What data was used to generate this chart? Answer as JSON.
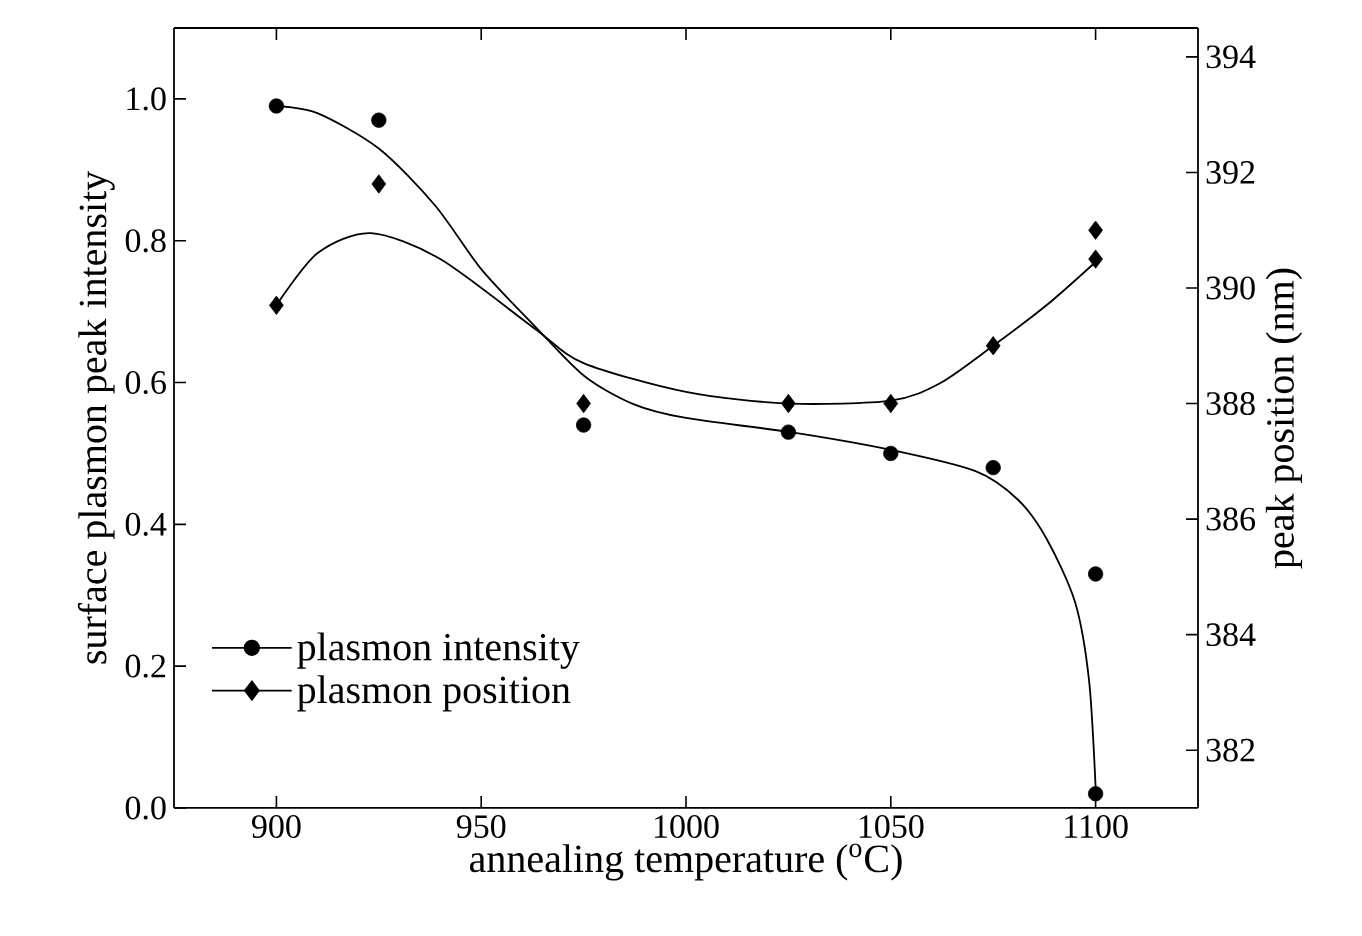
{
  "chart_data": {
    "type": "scatter",
    "xlabel": "annealing temperature ($^{o}$C)",
    "ylabel": "surface plasmon peak intensity",
    "y2label": "peak position (nm)",
    "xlim": [
      875,
      1125
    ],
    "xticks": [
      900,
      950,
      1000,
      1050,
      1100
    ],
    "ylim": [
      0,
      1.1
    ],
    "yticks": [
      {
        "value": 0,
        "label": "0.0"
      },
      0.2,
      0.4,
      0.6,
      0.8,
      {
        "value": 1,
        "label": "1.0"
      }
    ],
    "y2lim": [
      381,
      394.5
    ],
    "y2ticks": [
      382,
      384,
      386,
      388,
      390,
      392,
      394
    ],
    "legend": "bottom left",
    "grid": false,
    "series": [
      {
        "name": "plasmon intensity",
        "type": "scatter",
        "marker": "circle",
        "color": "#000000",
        "x": [
          900,
          925,
          975,
          1025,
          1050,
          1075,
          1100,
          1100
        ],
        "values": [
          0.99,
          0.97,
          0.54,
          0.53,
          0.5,
          0.48,
          0.33,
          0.02
        ]
      },
      {
        "name": "plasmon position",
        "type": "scatter",
        "marker": "diamond",
        "axis": "y2",
        "color": "#000000",
        "x": [
          900,
          925,
          975,
          1025,
          1050,
          1075,
          1100,
          1100
        ],
        "values": [
          389.7,
          391.8,
          388.0,
          388.0,
          388.0,
          389.0,
          391.0,
          390.5
        ]
      },
      {
        "type": "line",
        "color": "#000000",
        "x": [
          900,
          910,
          925,
          938.7,
          950,
          963,
          975,
          987,
          1000,
          1025.5,
          1050,
          1070.7,
          1081,
          1088,
          1095,
          1098.4,
          1100
        ],
        "values": [
          0.99,
          0.98,
          0.93,
          0.85,
          0.76,
          0.68,
          0.61,
          0.57,
          0.55,
          0.53,
          0.505,
          0.475,
          0.435,
          0.38,
          0.29,
          0.18,
          0.03
        ]
      },
      {
        "type": "line",
        "axis": "y2",
        "color": "#000000",
        "x": [
          900,
          910,
          923,
          940,
          963,
          975,
          1000,
          1025,
          1050,
          1062,
          1075,
          1088,
          1100
        ],
        "values": [
          389.7,
          390.6,
          390.95,
          390.5,
          389.3,
          388.7,
          388.2,
          388.0,
          388.05,
          388.35,
          389.0,
          389.7,
          390.45
        ]
      }
    ]
  }
}
